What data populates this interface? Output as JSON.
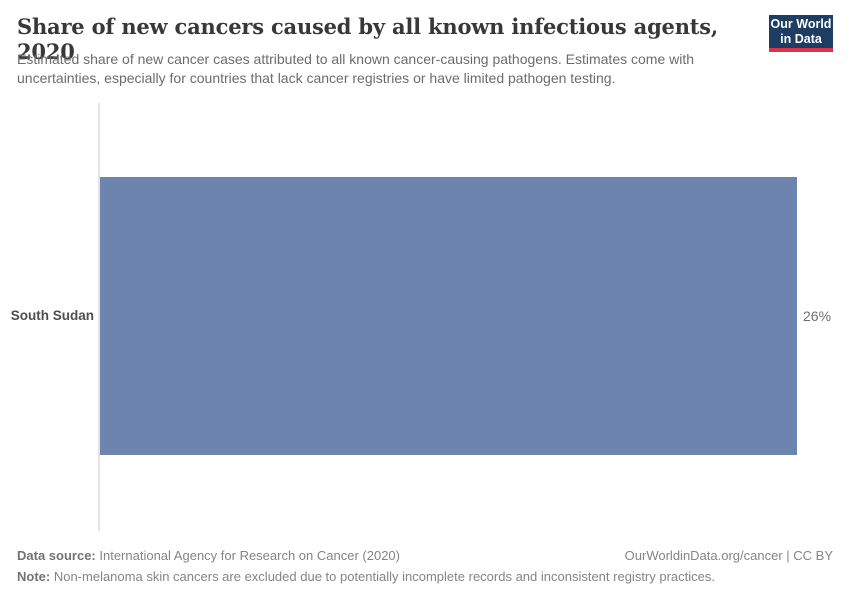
{
  "header": {
    "title": "Share of new cancers caused by all known infectious agents, 2020",
    "subtitle": "Estimated share of new cancer cases attributed to all known cancer-causing pathogens. Estimates come with uncertainties, especially for countries that lack cancer registries or have limited pathogen testing.",
    "logo": {
      "line1": "Our World",
      "line2": "in Data",
      "background_color": "#1d3d63",
      "accent_color": "#dc354a"
    }
  },
  "chart_data": {
    "type": "bar",
    "orientation": "horizontal",
    "title": "Share of new cancers caused by all known infectious agents, 2020",
    "categories": [
      "South Sudan"
    ],
    "values": [
      26
    ],
    "value_labels": [
      "26%"
    ],
    "xlabel": "",
    "ylabel": "",
    "xlim": [
      0,
      26
    ],
    "grid": false,
    "legend": "none",
    "bar_color": "#6d85ae",
    "axis_line_color": "#e4e4e4"
  },
  "footer": {
    "source_label": "Data source:",
    "source_text": " International Agency for Research on Cancer (2020)",
    "link_text": "OurWorldinData.org/cancer | CC BY",
    "note_label": "Note:",
    "note_text": " Non-melanoma skin cancers are excluded due to potentially incomplete records and inconsistent registry practices."
  }
}
